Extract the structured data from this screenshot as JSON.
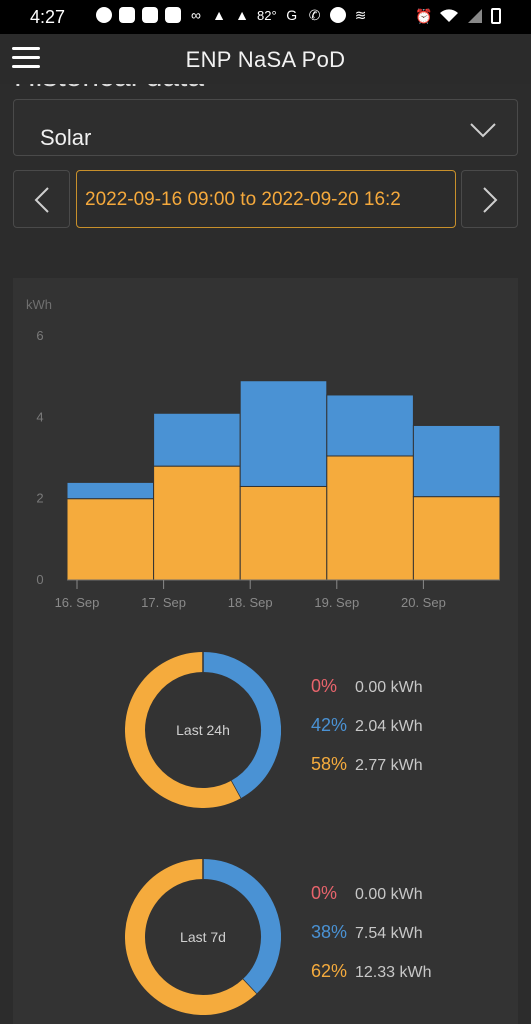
{
  "status_bar": {
    "time": "4:27",
    "temperature": "82°",
    "icons": [
      "messenger-icon",
      "chat-icon",
      "chat-icon",
      "chat-icon",
      "voicemail-icon",
      "notification-icon",
      "notification-icon",
      "google-icon",
      "missed-call-icon",
      "app-icon",
      "wifi-direction-icon",
      "alarm-icon",
      "wifi-icon",
      "signal-icon",
      "battery-icon"
    ]
  },
  "app_bar": {
    "title": "ENP NaSA PoD"
  },
  "page": {
    "title": "Historical data",
    "source_select": {
      "value": "Solar"
    },
    "date_range": "2022-09-16 09:00 to 2022-09-20 16:2"
  },
  "colors": {
    "orange": "#f5ab3d",
    "blue": "#4a92d4",
    "red": "#e8646c",
    "background": "#2c2c2c",
    "card": "#333333"
  },
  "chart_data": {
    "type": "bar",
    "stacked": true,
    "ylabel": "kWh",
    "ylim": [
      0,
      6
    ],
    "y_ticks": [
      "0",
      "2",
      "4",
      "6"
    ],
    "categories": [
      "16. Sep",
      "17. Sep",
      "18. Sep",
      "19. Sep",
      "20. Sep"
    ],
    "series": [
      {
        "color": "#f5ab3d",
        "values": [
          2.0,
          2.8,
          2.3,
          3.05,
          2.05
        ]
      },
      {
        "color": "#4a92d4",
        "values": [
          0.4,
          1.3,
          2.6,
          1.5,
          1.75
        ]
      }
    ],
    "grid": false
  },
  "donuts": [
    {
      "label": "Last 24h",
      "rows": [
        {
          "pct": "0%",
          "value": "0.00 kWh",
          "color": "#e8646c"
        },
        {
          "pct": "42%",
          "value": "2.04 kWh",
          "color": "#4a92d4"
        },
        {
          "pct": "58%",
          "value": "2.77 kWh",
          "color": "#f5ab3d"
        }
      ],
      "fractions": [
        0.0,
        0.42,
        0.58
      ]
    },
    {
      "label": "Last 7d",
      "rows": [
        {
          "pct": "0%",
          "value": "0.00 kWh",
          "color": "#e8646c"
        },
        {
          "pct": "38%",
          "value": "7.54 kWh",
          "color": "#4a92d4"
        },
        {
          "pct": "62%",
          "value": "12.33 kWh",
          "color": "#f5ab3d"
        }
      ],
      "fractions": [
        0.0,
        0.38,
        0.62
      ]
    }
  ]
}
